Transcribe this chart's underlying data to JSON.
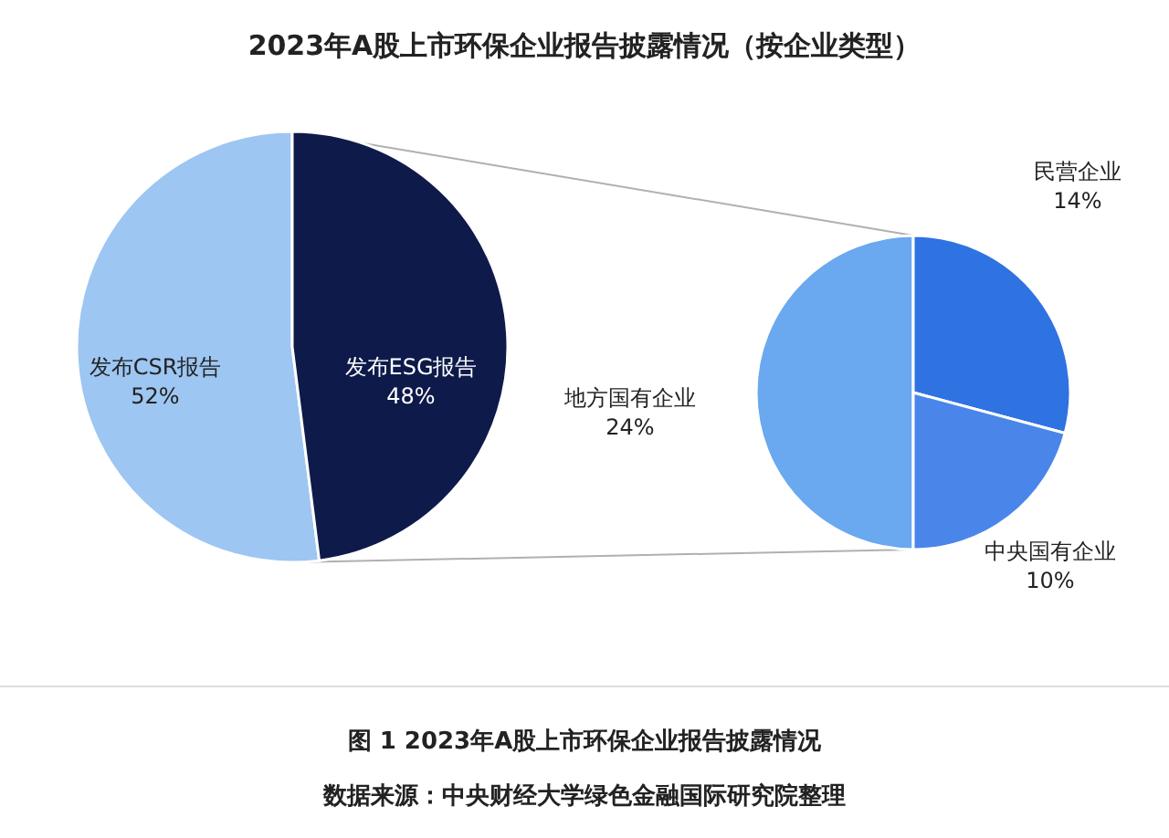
{
  "chart_data": [
    {
      "type": "pie",
      "title": "2023年A股上市环保企业报告披露情况（按企业类型）",
      "categories": [
        "发布CSR报告",
        "发布ESG报告"
      ],
      "values": [
        52,
        48
      ],
      "colors": [
        "#9dc6f2",
        "#0e1a4a"
      ],
      "value_labels": [
        "52%",
        "48%"
      ],
      "annotations": [
        "图 1 2023年A股上市环保企业报告披露情况",
        "数据来源：中央财经大学绿色金融国际研究院整理"
      ]
    },
    {
      "type": "pie",
      "categories": [
        "地方国有企业",
        "民营企业",
        "中央国有企业"
      ],
      "values": [
        24,
        14,
        10
      ],
      "colors": [
        "#6aa8ef",
        "#2f72e2",
        "#4a86ea"
      ],
      "value_labels": [
        "24%",
        "14%",
        "10%"
      ]
    }
  ]
}
